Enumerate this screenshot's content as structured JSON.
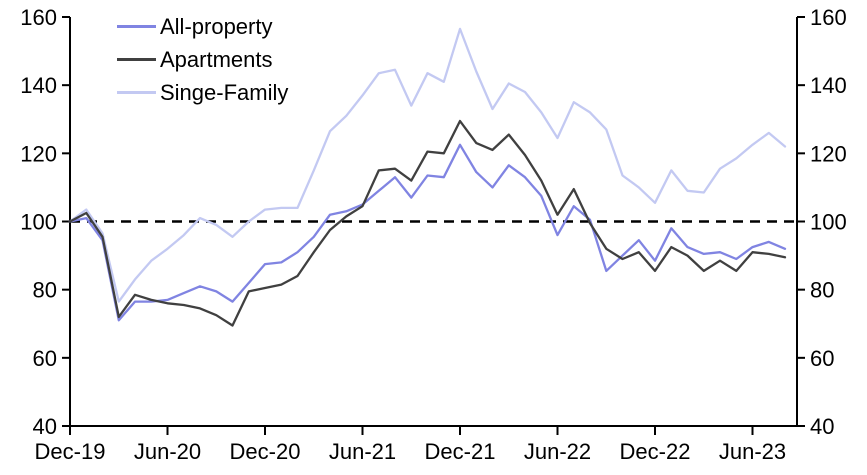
{
  "chart_data": {
    "type": "line",
    "title": "",
    "xlabel": "",
    "ylabel": "",
    "ylim": [
      40,
      160
    ],
    "y_ticks": [
      40,
      60,
      80,
      100,
      120,
      140,
      160
    ],
    "y_axis_sides": "both",
    "x_tick_labels": [
      "Dec-19",
      "Jun-20",
      "Dec-20",
      "Jun-21",
      "Dec-21",
      "Jun-22",
      "Dec-22",
      "Jun-23"
    ],
    "grid": false,
    "legend_position": "top-left",
    "reference_line": {
      "value": 100,
      "style": "dashed",
      "color": "#000000"
    },
    "categories": [
      "Dec-19",
      "Jan-20",
      "Feb-20",
      "Mar-20",
      "Apr-20",
      "May-20",
      "Jun-20",
      "Jul-20",
      "Aug-20",
      "Sep-20",
      "Oct-20",
      "Nov-20",
      "Dec-20",
      "Jan-21",
      "Feb-21",
      "Mar-21",
      "Apr-21",
      "May-21",
      "Jun-21",
      "Jul-21",
      "Aug-21",
      "Sep-21",
      "Oct-21",
      "Nov-21",
      "Dec-21",
      "Jan-22",
      "Feb-22",
      "Mar-22",
      "Apr-22",
      "May-22",
      "Jun-22",
      "Jul-22",
      "Aug-22",
      "Sep-22",
      "Oct-22",
      "Nov-22",
      "Dec-22",
      "Jan-23",
      "Feb-23",
      "Mar-23",
      "Apr-23",
      "May-23",
      "Jun-23",
      "Jul-23",
      "Aug-23"
    ],
    "series": [
      {
        "name": "All-property",
        "color": "#8084e2",
        "values": [
          100,
          101,
          94.5,
          71,
          76.5,
          76.5,
          77,
          79,
          81,
          79.5,
          76.5,
          82,
          87.5,
          88,
          91,
          95.5,
          102,
          103,
          105,
          109,
          113,
          107,
          113.5,
          113,
          122.5,
          114.5,
          110,
          116.5,
          113,
          107.5,
          96,
          104.5,
          100.5,
          85.5,
          90,
          94.5,
          88.5,
          98,
          92.5,
          90.5,
          91,
          89,
          92.5,
          94,
          92
        ]
      },
      {
        "name": "Apartments",
        "color": "#404040",
        "values": [
          100,
          102.5,
          95.5,
          72,
          78.5,
          77,
          76,
          75.5,
          74.5,
          72.5,
          69.5,
          79.5,
          80.5,
          81.5,
          84,
          91,
          97.5,
          101.5,
          104.5,
          115,
          115.5,
          112,
          120.5,
          120,
          129.5,
          123,
          121,
          125.5,
          119.5,
          112,
          102,
          109.5,
          99.5,
          92,
          89,
          91,
          85.5,
          92.5,
          90,
          85.5,
          88.5,
          85.5,
          91,
          90.5,
          89.5
        ]
      },
      {
        "name": "Singe-Family",
        "color": "#c3c9f2",
        "values": [
          100,
          103.5,
          96.5,
          76.5,
          83,
          88.5,
          92,
          96,
          101,
          99,
          95.5,
          100,
          103.5,
          104,
          104,
          115,
          126.5,
          131,
          137,
          143.5,
          144.5,
          134,
          143.5,
          141,
          156.5,
          144,
          133,
          140.5,
          138,
          132,
          124.5,
          135,
          132,
          127,
          113.5,
          110,
          105.5,
          115,
          109,
          108.5,
          115.5,
          118.5,
          122.5,
          126,
          122
        ]
      }
    ]
  }
}
